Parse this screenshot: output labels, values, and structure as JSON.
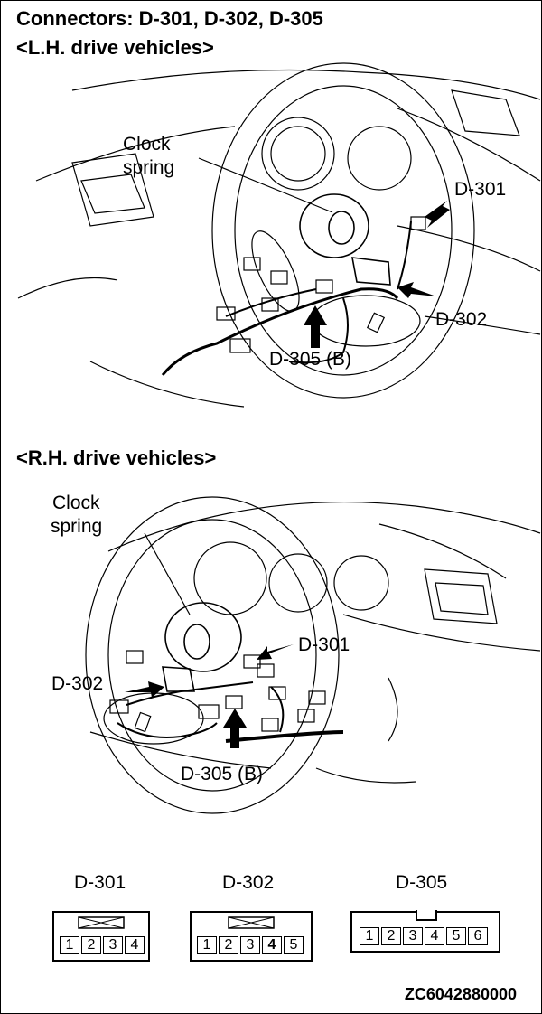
{
  "header": {
    "title": "Connectors: D-301, D-302, D-305",
    "lh_heading": "<L.H. drive vehicles>",
    "rh_heading": "<R.H. drive vehicles>"
  },
  "lh_diagram": {
    "clock_spring_line1": "Clock",
    "clock_spring_line2": "spring",
    "d301": "D-301",
    "d302": "D-302",
    "d305": "D-305 (B)"
  },
  "rh_diagram": {
    "clock_spring_line1": "Clock",
    "clock_spring_line2": "spring",
    "d301": "D-301",
    "d302": "D-302",
    "d305": "D-305 (B)"
  },
  "connectors": [
    {
      "label": "D-301",
      "pins": [
        "1",
        "2",
        "3",
        "4"
      ]
    },
    {
      "label": "D-302",
      "pins": [
        "1",
        "2",
        "3",
        "4",
        "5"
      ]
    },
    {
      "label": "D-305",
      "pins": [
        "1",
        "2",
        "3",
        "4",
        "5",
        "6"
      ]
    }
  ],
  "footer": {
    "code": "ZC6042880000"
  },
  "colors": {
    "line": "#000000",
    "background": "#ffffff"
  }
}
